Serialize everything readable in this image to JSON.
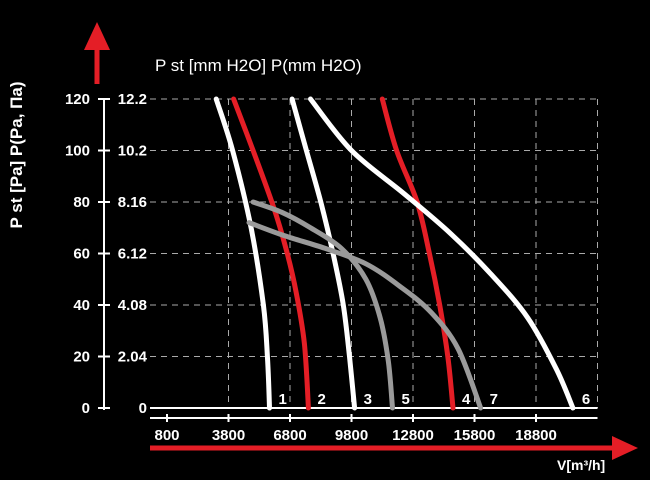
{
  "chart_data": {
    "type": "line",
    "title": "",
    "y_title_left": "P st [Pa] P(Pa, Па)",
    "y_title_top": "P st [mm H2O] P(mm H2O)",
    "x_title": "V[m³/h]",
    "x_ticks": [
      "800",
      "3800",
      "6800",
      "9800",
      "12800",
      "15800",
      "18800"
    ],
    "y_ticks_pa": [
      "0",
      "20",
      "40",
      "60",
      "80",
      "100",
      "120"
    ],
    "y_ticks_mm": [
      "0",
      "2.04",
      "4.08",
      "6.12",
      "8.16",
      "10.2",
      "12.2"
    ],
    "xlim": [
      800,
      21800
    ],
    "ylim": [
      0,
      120
    ],
    "colors": {
      "white": "#ffffff",
      "red": "#e41e26",
      "gray": "#9a9a9a",
      "arrow": "#e41e26"
    },
    "series": [
      {
        "name": "1",
        "color": "#ffffff",
        "points": [
          [
            3200,
            120
          ],
          [
            4000,
            100
          ],
          [
            4900,
            70
          ],
          [
            5500,
            40
          ],
          [
            5700,
            20
          ],
          [
            5800,
            0
          ]
        ]
      },
      {
        "name": "2",
        "color": "#e41e26",
        "points": [
          [
            4050,
            120
          ],
          [
            5000,
            100
          ],
          [
            6000,
            78
          ],
          [
            6600,
            62
          ],
          [
            7100,
            45
          ],
          [
            7500,
            25
          ],
          [
            7700,
            0
          ]
        ]
      },
      {
        "name": "3",
        "color": "#ffffff",
        "points": [
          [
            6900,
            120
          ],
          [
            7600,
            100
          ],
          [
            8300,
            80
          ],
          [
            8900,
            60
          ],
          [
            9400,
            40
          ],
          [
            9700,
            20
          ],
          [
            9950,
            0
          ]
        ]
      },
      {
        "name": "4",
        "color": "#e41e26",
        "points": [
          [
            11300,
            120
          ],
          [
            12000,
            100
          ],
          [
            13000,
            80
          ],
          [
            13600,
            60
          ],
          [
            14100,
            40
          ],
          [
            14500,
            20
          ],
          [
            14750,
            0
          ]
        ]
      },
      {
        "name": "5",
        "color": "#9a9a9a",
        "points": [
          [
            5000,
            80
          ],
          [
            6400,
            76
          ],
          [
            7800,
            70
          ],
          [
            9300,
            62
          ],
          [
            10500,
            50
          ],
          [
            11200,
            35
          ],
          [
            11600,
            18
          ],
          [
            11800,
            0
          ]
        ]
      },
      {
        "name": "6",
        "color": "#ffffff",
        "points": [
          [
            7800,
            120
          ],
          [
            9800,
            100
          ],
          [
            12400,
            83
          ],
          [
            14600,
            68
          ],
          [
            16600,
            52
          ],
          [
            18400,
            35
          ],
          [
            19800,
            15
          ],
          [
            20600,
            0
          ]
        ]
      },
      {
        "name": "7",
        "color": "#9a9a9a",
        "points": [
          [
            4800,
            72
          ],
          [
            6500,
            67
          ],
          [
            8500,
            62
          ],
          [
            10500,
            56
          ],
          [
            12200,
            47
          ],
          [
            13700,
            37
          ],
          [
            15000,
            23
          ],
          [
            16100,
            0
          ]
        ]
      }
    ]
  }
}
